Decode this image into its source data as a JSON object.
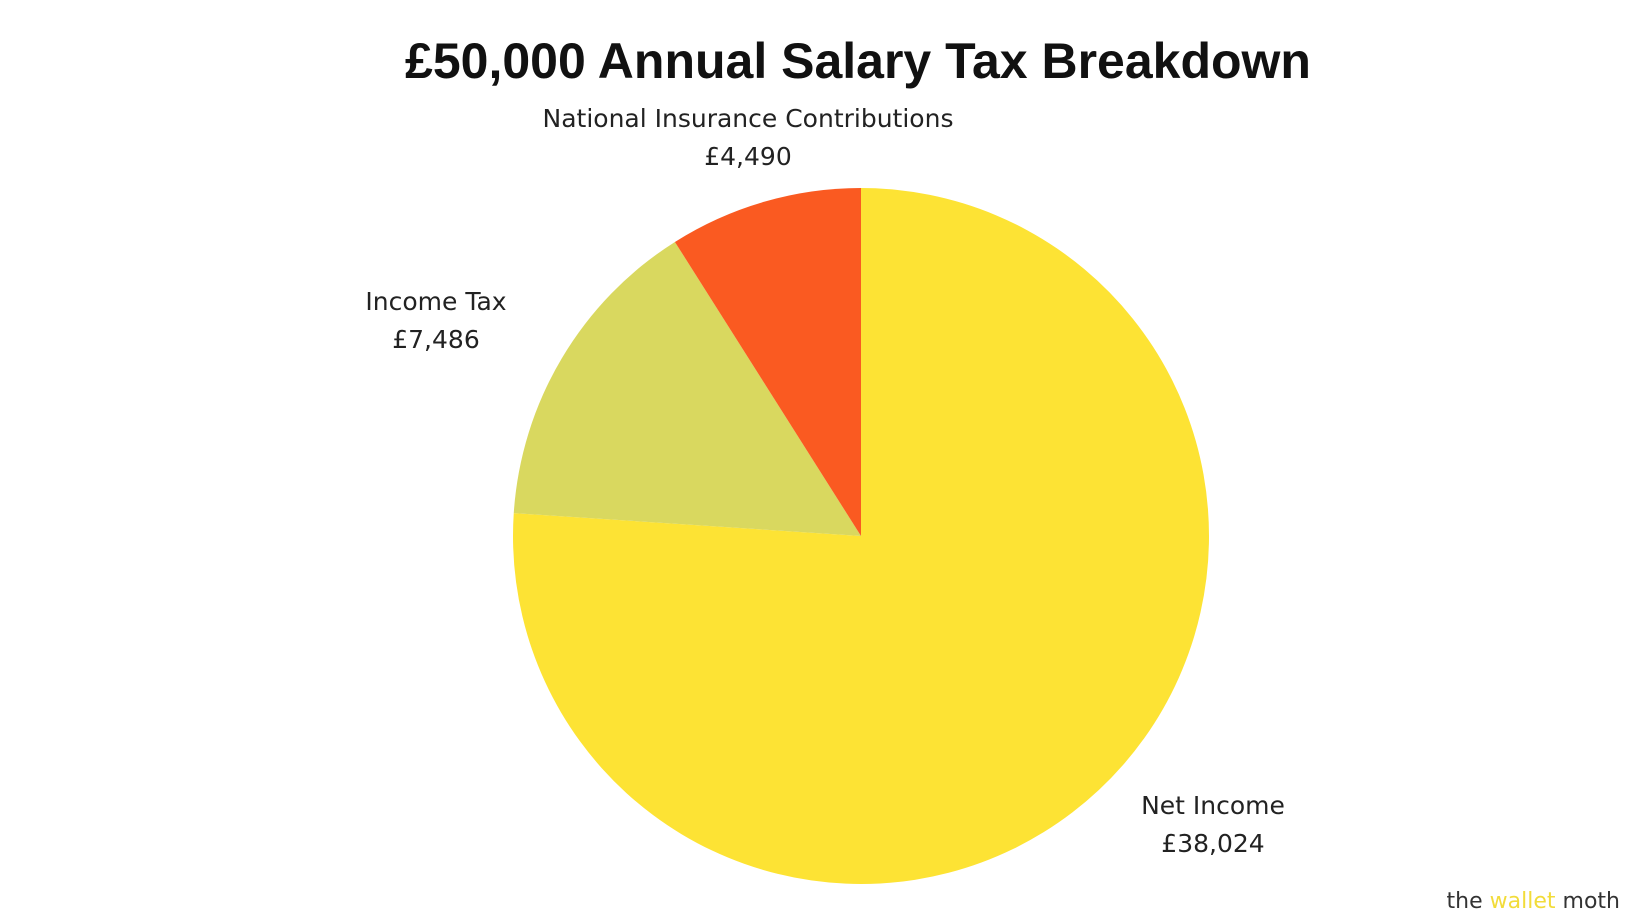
{
  "chart_data": {
    "type": "pie",
    "title": "£50,000 Annual Salary Tax Breakdown",
    "categories": [
      "Net Income",
      "Income Tax",
      "National Insurance Contributions"
    ],
    "values": [
      38024,
      7486,
      4490
    ],
    "value_labels": [
      "£38,024",
      "£7,486",
      "£4,490"
    ],
    "colors": [
      "#fde334",
      "#d9d85f",
      "#fa5a21"
    ]
  },
  "watermark": [
    "the",
    "wallet",
    "moth"
  ]
}
